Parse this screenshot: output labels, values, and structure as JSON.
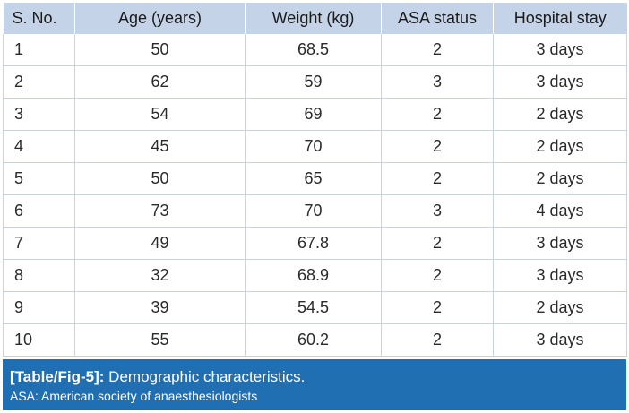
{
  "table": {
    "headers": [
      "S. No.",
      "Age (years)",
      "Weight (kg)",
      "ASA status",
      "Hospital stay"
    ],
    "rows": [
      [
        "1",
        "50",
        "68.5",
        "2",
        "3 days"
      ],
      [
        "2",
        "62",
        "59",
        "3",
        "3 days"
      ],
      [
        "3",
        "54",
        "69",
        "2",
        "2 days"
      ],
      [
        "4",
        "45",
        "70",
        "2",
        "2 days"
      ],
      [
        "5",
        "50",
        "65",
        "2",
        "2 days"
      ],
      [
        "6",
        "73",
        "70",
        "3",
        "4 days"
      ],
      [
        "7",
        "49",
        "67.8",
        "2",
        "3 days"
      ],
      [
        "8",
        "32",
        "68.9",
        "2",
        "3 days"
      ],
      [
        "9",
        "39",
        "54.5",
        "2",
        "2 days"
      ],
      [
        "10",
        "55",
        "60.2",
        "2",
        "3 days"
      ]
    ]
  },
  "caption": {
    "tag": "[Table/Fig-5]:",
    "title": " Demographic characteristics.",
    "footnote": "ASA: American society of anaesthesiologists"
  },
  "colors": {
    "header_bg": "#c5d3e8",
    "caption_bg": "#1f6fb2",
    "grid_line": "#c7d3e4"
  }
}
